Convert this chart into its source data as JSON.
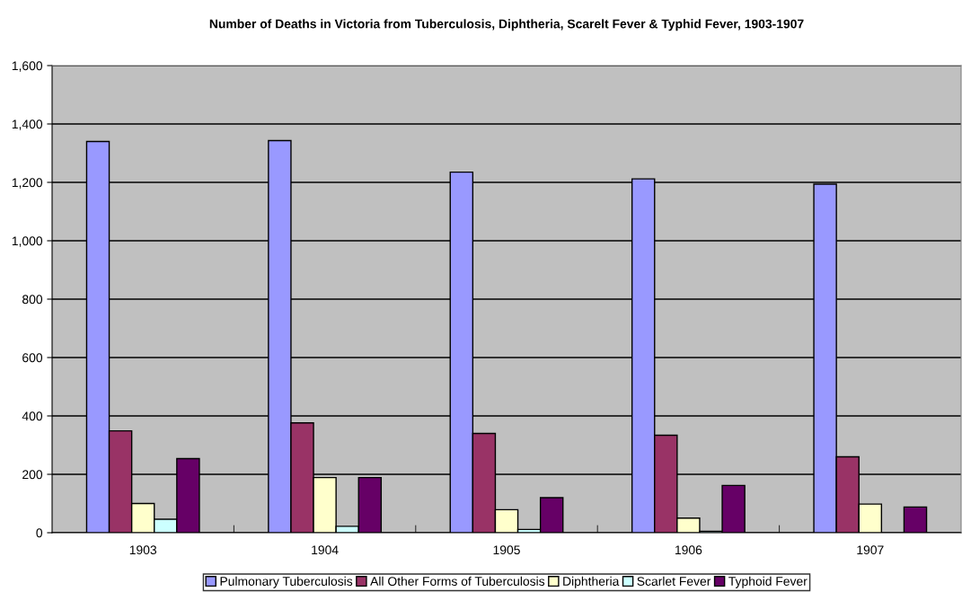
{
  "chart_data": {
    "type": "bar",
    "title": "Number of Deaths in Victoria from Tuberculosis, Diphtheria, Scarelt Fever & Typhid Fever, 1903-1907",
    "categories": [
      "1903",
      "1904",
      "1905",
      "1906",
      "1907"
    ],
    "series": [
      {
        "name": "Pulmonary Tuberculosis",
        "color": "#9999ff",
        "values": [
          1340,
          1343,
          1235,
          1212,
          1194
        ]
      },
      {
        "name": "All Other Forms of Tuberculosis",
        "color": "#993366",
        "values": [
          349,
          376,
          340,
          334,
          260
        ]
      },
      {
        "name": "Diphtheria",
        "color": "#ffffcc",
        "values": [
          100,
          189,
          79,
          50,
          98
        ]
      },
      {
        "name": "Scarlet Fever",
        "color": "#ccffff",
        "values": [
          46,
          22,
          11,
          5,
          null
        ]
      },
      {
        "name": "Typhoid Fever",
        "color": "#660066",
        "values": [
          254,
          189,
          120,
          162,
          88
        ]
      }
    ],
    "ylim": [
      0,
      1600
    ],
    "yticks": [
      {
        "value": 0,
        "label": "0"
      },
      {
        "value": 200,
        "label": "200"
      },
      {
        "value": 400,
        "label": "400"
      },
      {
        "value": 600,
        "label": "600"
      },
      {
        "value": 800,
        "label": "800"
      },
      {
        "value": 1000,
        "label": "1,000"
      },
      {
        "value": 1200,
        "label": "1,200"
      },
      {
        "value": 1400,
        "label": "1,400"
      },
      {
        "value": 1600,
        "label": "1,600"
      }
    ],
    "grid": "y",
    "legend": "bottom"
  }
}
